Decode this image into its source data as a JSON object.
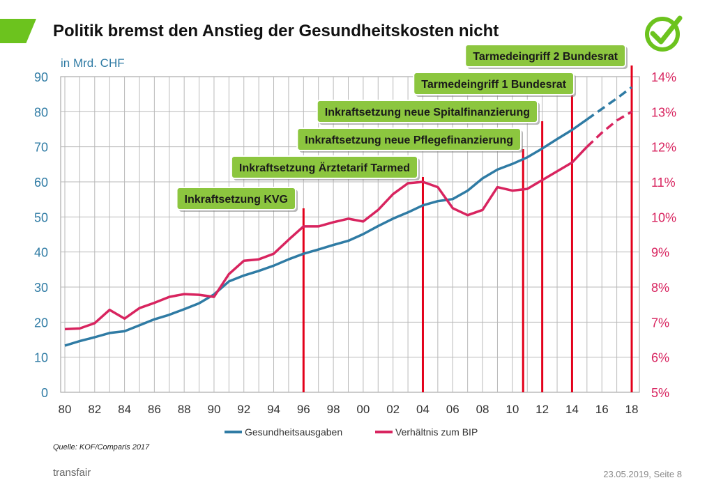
{
  "slide": {
    "title": "Politik bremst den Anstieg der Gesundheitskosten nicht",
    "source": "Quelle: KOF/Comparis 2017",
    "brand": "transfair",
    "date_page": "23.05.2019, Seite 8"
  },
  "colors": {
    "accent": "#6cc31e",
    "series_costs": "#2f7ba4",
    "series_gdp": "#d8245f",
    "event_line": "#e3001b",
    "event_box": "#8cc63f"
  },
  "icons": {
    "logo": "check-icon"
  },
  "chart_data": {
    "type": "line",
    "unit_label": "in Mrd. CHF",
    "x_tick_labels": [
      "80",
      "82",
      "84",
      "86",
      "88",
      "90",
      "92",
      "94",
      "96",
      "98",
      "00",
      "02",
      "04",
      "06",
      "08",
      "10",
      "12",
      "14",
      "16",
      "18"
    ],
    "y_left_ticks": [
      "0",
      "10",
      "20",
      "30",
      "40",
      "50",
      "60",
      "70",
      "80",
      "90"
    ],
    "y_right_ticks": [
      "5%",
      "6%",
      "7%",
      "8%",
      "9%",
      "10%",
      "11%",
      "12%",
      "13%",
      "14%"
    ],
    "y_left_range": [
      0,
      90
    ],
    "y_right_range": [
      5,
      14
    ],
    "x_range": [
      1980,
      2018
    ],
    "grid": true,
    "legend_position": "bottom",
    "series": [
      {
        "name": "Gesundheitsausgaben",
        "axis": "left",
        "x": [
          1980,
          1981,
          1982,
          1983,
          1984,
          1985,
          1986,
          1987,
          1988,
          1989,
          1990,
          1991,
          1992,
          1993,
          1994,
          1995,
          1996,
          1997,
          1998,
          1999,
          2000,
          2001,
          2002,
          2003,
          2004,
          2005,
          2006,
          2007,
          2008,
          2009,
          2010,
          2011,
          2012,
          2013,
          2014,
          2015,
          2016,
          2017,
          2018
        ],
        "values": [
          13.3,
          14.6,
          15.7,
          16.9,
          17.4,
          19.1,
          20.8,
          22.1,
          23.7,
          25.4,
          27.9,
          31.6,
          33.3,
          34.6,
          36.1,
          37.9,
          39.5,
          40.7,
          42.0,
          43.2,
          45.1,
          47.4,
          49.5,
          51.3,
          53.3,
          54.5,
          55.1,
          57.5,
          61.0,
          63.5,
          65.1,
          67.0,
          69.5,
          72.2,
          74.8,
          77.8,
          80.8,
          83.8,
          87.0
        ],
        "projected_from": 2015
      },
      {
        "name": "Verhältnis zum BIP",
        "axis": "right",
        "x": [
          1980,
          1981,
          1982,
          1983,
          1984,
          1985,
          1986,
          1987,
          1988,
          1989,
          1990,
          1991,
          1992,
          1993,
          1994,
          1995,
          1996,
          1997,
          1998,
          1999,
          2000,
          2001,
          2002,
          2003,
          2004,
          2005,
          2006,
          2007,
          2008,
          2009,
          2010,
          2011,
          2012,
          2013,
          2014,
          2015,
          2016,
          2017,
          2018
        ],
        "values": [
          6.8,
          6.82,
          6.97,
          7.35,
          7.1,
          7.4,
          7.55,
          7.72,
          7.8,
          7.78,
          7.72,
          8.37,
          8.75,
          8.79,
          8.95,
          9.35,
          9.73,
          9.73,
          9.85,
          9.95,
          9.87,
          10.2,
          10.65,
          10.96,
          11.0,
          10.85,
          10.25,
          10.05,
          10.2,
          10.85,
          10.75,
          10.8,
          11.05,
          11.3,
          11.55,
          12.0,
          12.4,
          12.75,
          13.0
        ],
        "projected_from": 2015
      }
    ],
    "events": [
      {
        "label": "Inkraftsetzung KVG",
        "x": 1996
      },
      {
        "label": "Inkraftsetzung Ärztetarif Tarmed",
        "x": 2004
      },
      {
        "label": "Inkraftsetzung neue Pflegefinanzierung",
        "x": 2011
      },
      {
        "label": "Inkraftsetzung neue Spitalfinanzierung",
        "x": 2012
      },
      {
        "label": "Tarmedeingriff 1 Bundesrat",
        "x": 2014
      },
      {
        "label": "Tarmedeingriff 2 Bundesrat",
        "x": 2018
      }
    ]
  }
}
